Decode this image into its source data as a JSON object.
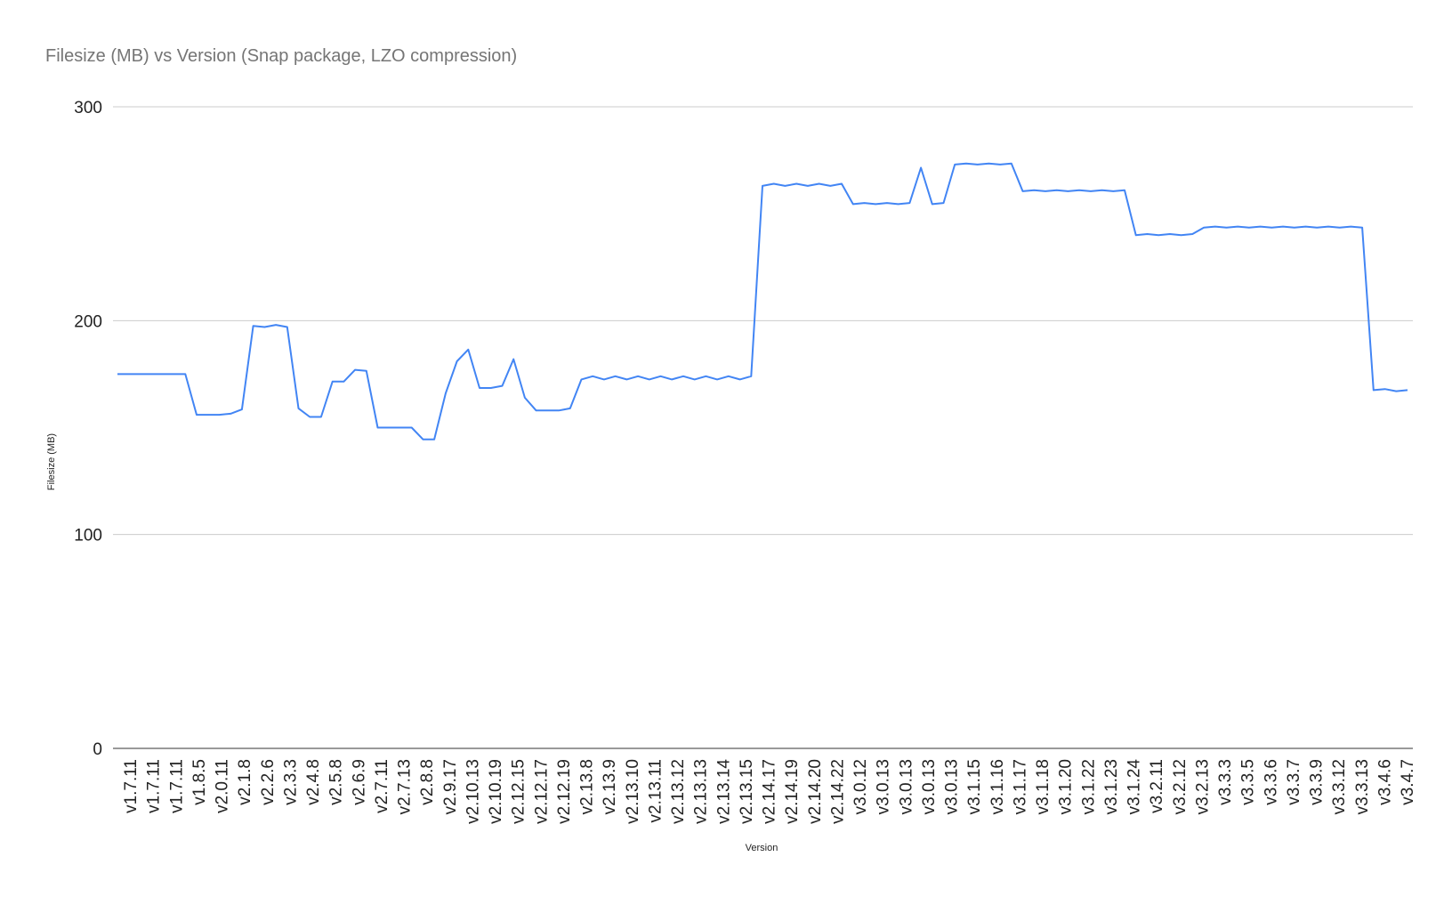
{
  "chart_data": {
    "type": "line",
    "title": "Filesize (MB) vs Version (Snap package, LZO compression)",
    "xlabel": "Version",
    "ylabel": "Filesize (MB)",
    "ylim": [
      0,
      300
    ],
    "yticks": [
      "0",
      "100",
      "200",
      "300"
    ],
    "grid": true,
    "legend": "none",
    "color": "#4285f4",
    "tick_labels": [
      "v1.7.11",
      "v1.7.11",
      "v1.7.11",
      "v1.8.5",
      "v2.0.11",
      "v2.1.8",
      "v2.2.6",
      "v2.3.3",
      "v2.4.8",
      "v2.5.8",
      "v2.6.9",
      "v2.7.11",
      "v2.7.13",
      "v2.8.8",
      "v2.9.17",
      "v2.10.13",
      "v2.10.19",
      "v2.12.15",
      "v2.12.17",
      "v2.12.19",
      "v2.13.8",
      "v2.13.9",
      "v2.13.10",
      "v2.13.11",
      "v2.13.12",
      "v2.13.13",
      "v2.13.14",
      "v2.13.15",
      "v2.14.17",
      "v2.14.19",
      "v2.14.20",
      "v2.14.22",
      "v3.0.12",
      "v3.0.13",
      "v3.0.13",
      "v3.0.13",
      "v3.0.13",
      "v3.1.15",
      "v3.1.16",
      "v3.1.17",
      "v3.1.18",
      "v3.1.20",
      "v3.1.22",
      "v3.1.23",
      "v3.1.24",
      "v3.2.11",
      "v3.2.12",
      "v3.2.13",
      "v3.3.3",
      "v3.3.5",
      "v3.3.6",
      "v3.3.7",
      "v3.3.9",
      "v3.3.12",
      "v3.3.13",
      "v3.4.6",
      "v3.4.7"
    ],
    "values": [
      175,
      175,
      175,
      175,
      175,
      175,
      175,
      156,
      156,
      156,
      156.5,
      158.5,
      197.5,
      197,
      198,
      197,
      159,
      155,
      155,
      171.5,
      171.5,
      177,
      176.5,
      150,
      150,
      150,
      150,
      144.5,
      144.5,
      166,
      181,
      186.5,
      168.5,
      168.5,
      169.5,
      182,
      164,
      158,
      158,
      158,
      159,
      172.5,
      174,
      172.5,
      174,
      172.5,
      174,
      172.5,
      174,
      172.5,
      174,
      172.5,
      174,
      172.5,
      174,
      172.5,
      174,
      263,
      264,
      263,
      264,
      263,
      264,
      263,
      264,
      254.5,
      255,
      254.5,
      255,
      254.5,
      255,
      271.5,
      254.5,
      255,
      273,
      273.5,
      273,
      273.5,
      273,
      273.5,
      260.5,
      261,
      260.5,
      261,
      260.5,
      261,
      260.5,
      261,
      260.5,
      261,
      240,
      240.5,
      240,
      240.5,
      240,
      240.5,
      243.5,
      244,
      243.5,
      244,
      243.5,
      244,
      243.5,
      244,
      243.5,
      244,
      243.5,
      244,
      243.5,
      244,
      243.5,
      167.5,
      168,
      167,
      167.5
    ]
  }
}
